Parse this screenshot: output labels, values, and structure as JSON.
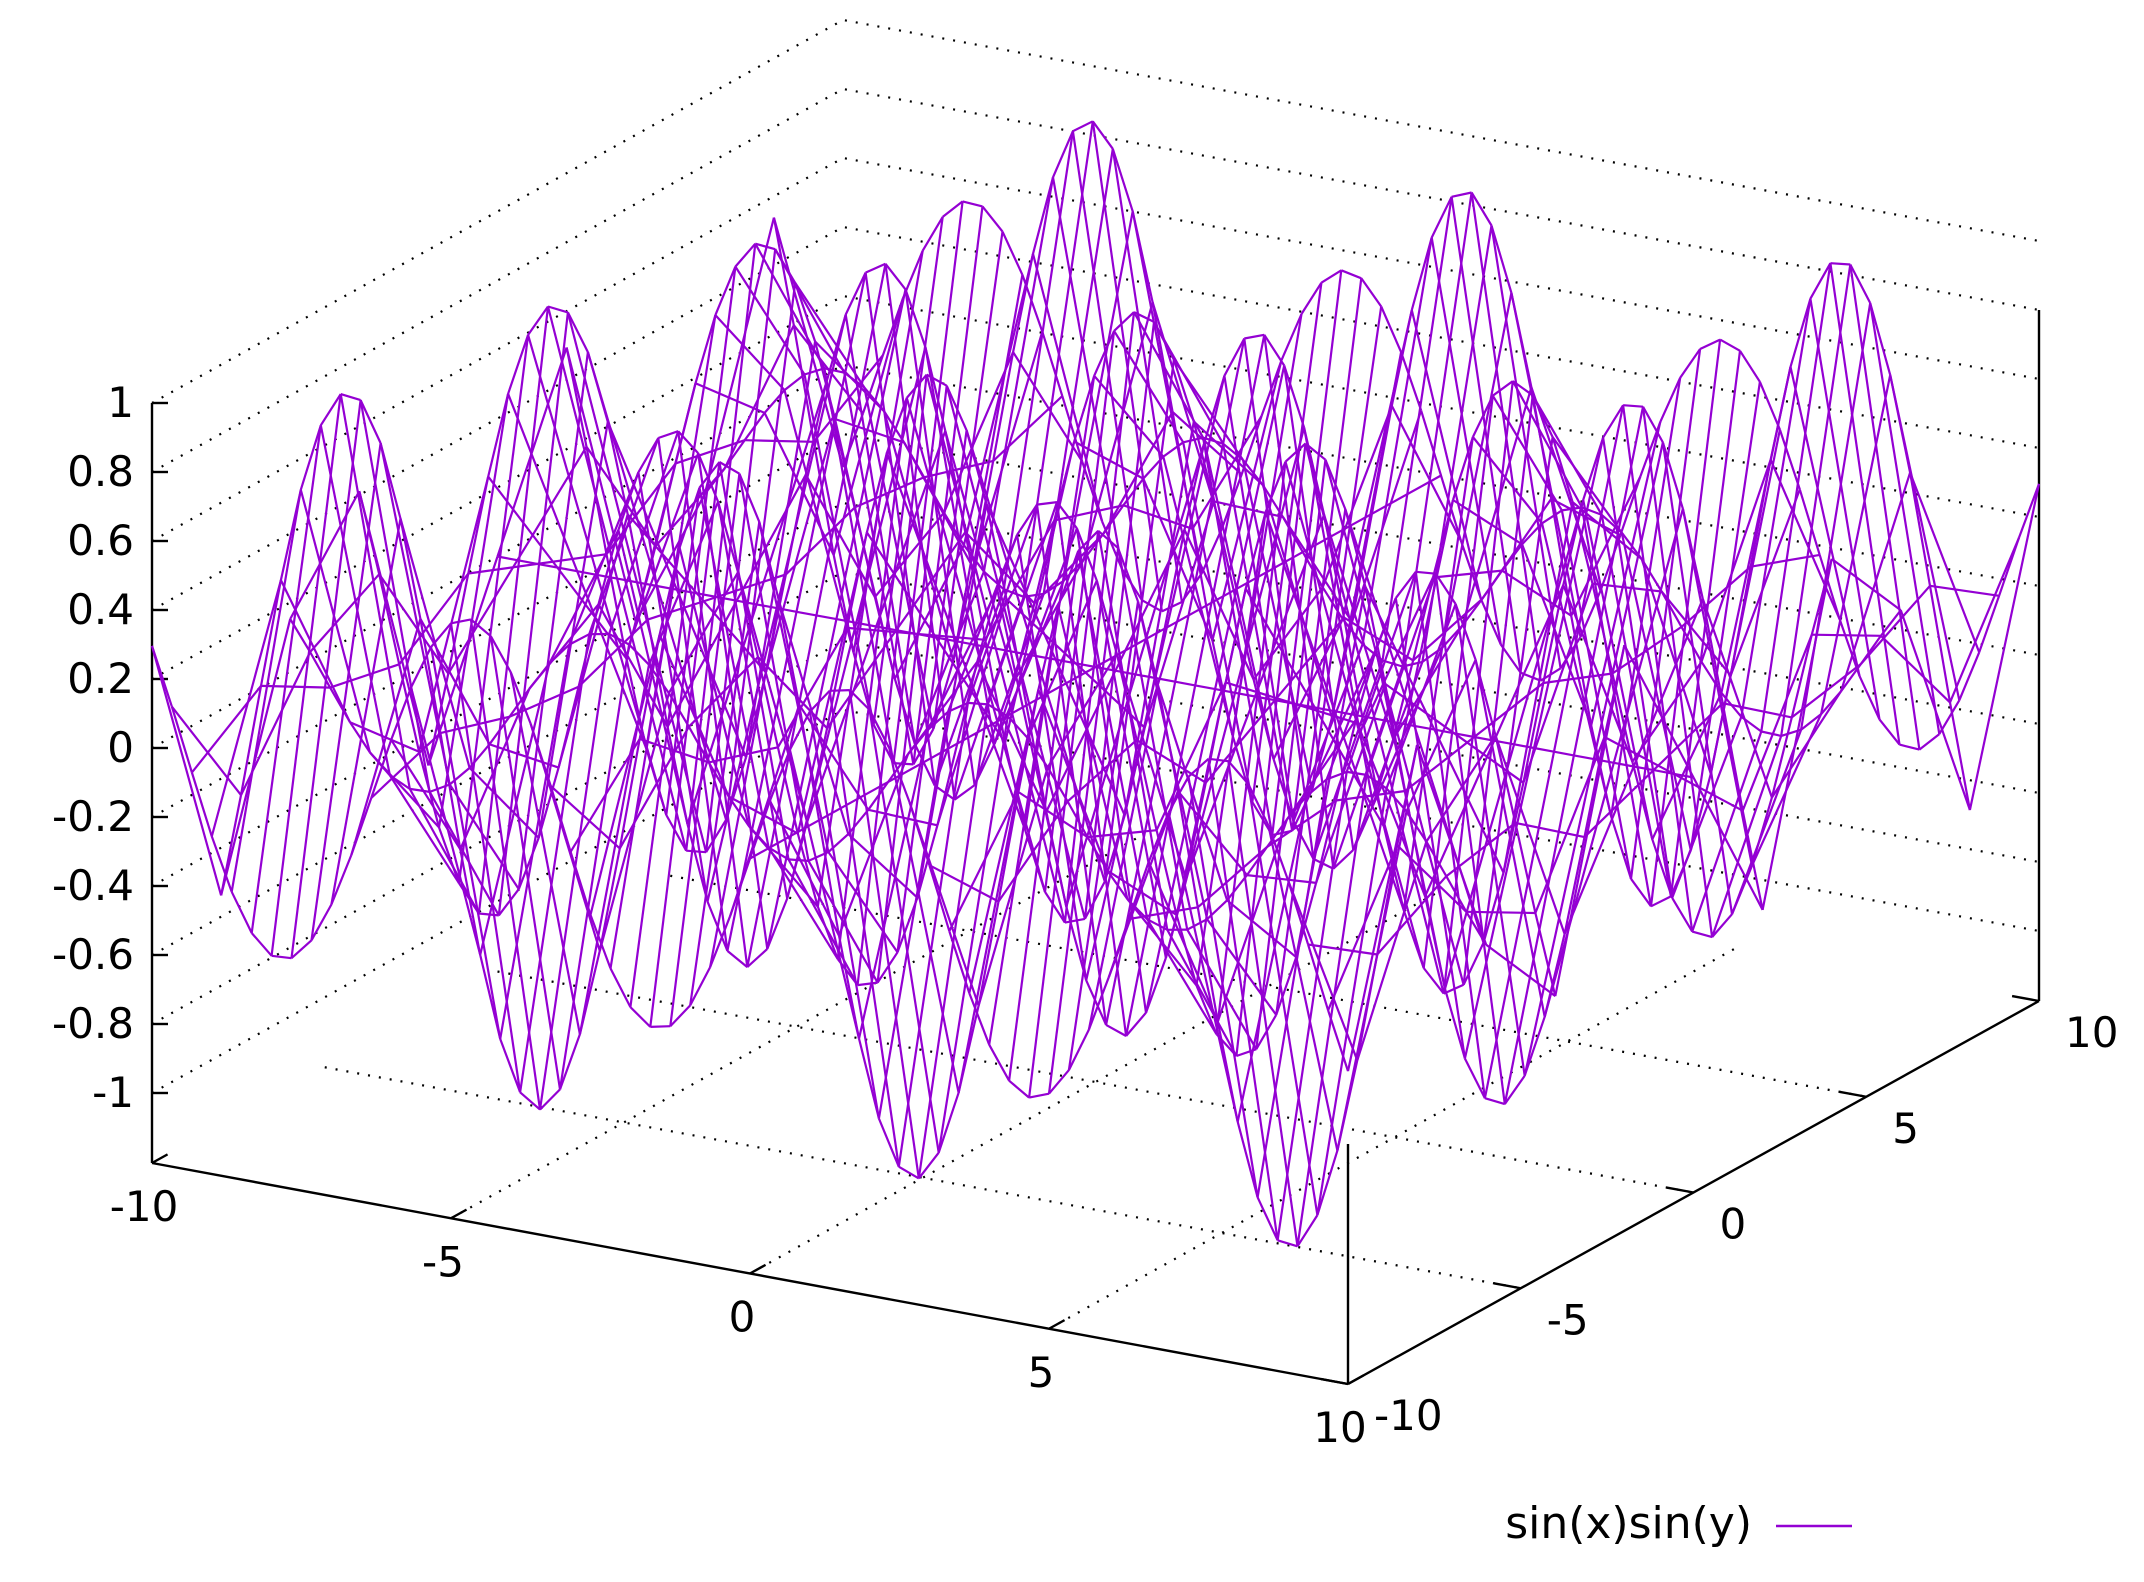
{
  "chart_data": {
    "type": "surface",
    "title": "",
    "function": "sin(x)sin(y)",
    "x": {
      "range": [
        -10,
        10
      ],
      "ticks": [
        -10,
        -5,
        0,
        5,
        10
      ],
      "tick_labels": [
        "-10",
        "-5",
        "0",
        "5",
        "10"
      ]
    },
    "y": {
      "range": [
        -10,
        10
      ],
      "ticks": [
        -10,
        -5,
        0,
        5,
        10
      ],
      "tick_labels": [
        "-10",
        "-5",
        "0",
        "5",
        "10"
      ]
    },
    "z": {
      "range": [
        -1,
        1
      ],
      "ticks": [
        -1,
        -0.8,
        -0.6,
        -0.4,
        -0.2,
        0,
        0.2,
        0.4,
        0.6,
        0.8,
        1
      ],
      "tick_labels": [
        "-1",
        "-0.8",
        "-0.6",
        "-0.4",
        "-0.2",
        "0",
        "0.2",
        "0.4",
        "0.6",
        "0.8",
        "1"
      ]
    },
    "samples": {
      "fine": 61,
      "coarse": 11
    },
    "grid": true,
    "series": [
      {
        "name": "sin(x)sin(y)",
        "top_color": "#9400d3",
        "bottom_color": "#009e73"
      }
    ],
    "legend": {
      "label": "sin(x)sin(y)",
      "position": "bottom-right"
    }
  }
}
